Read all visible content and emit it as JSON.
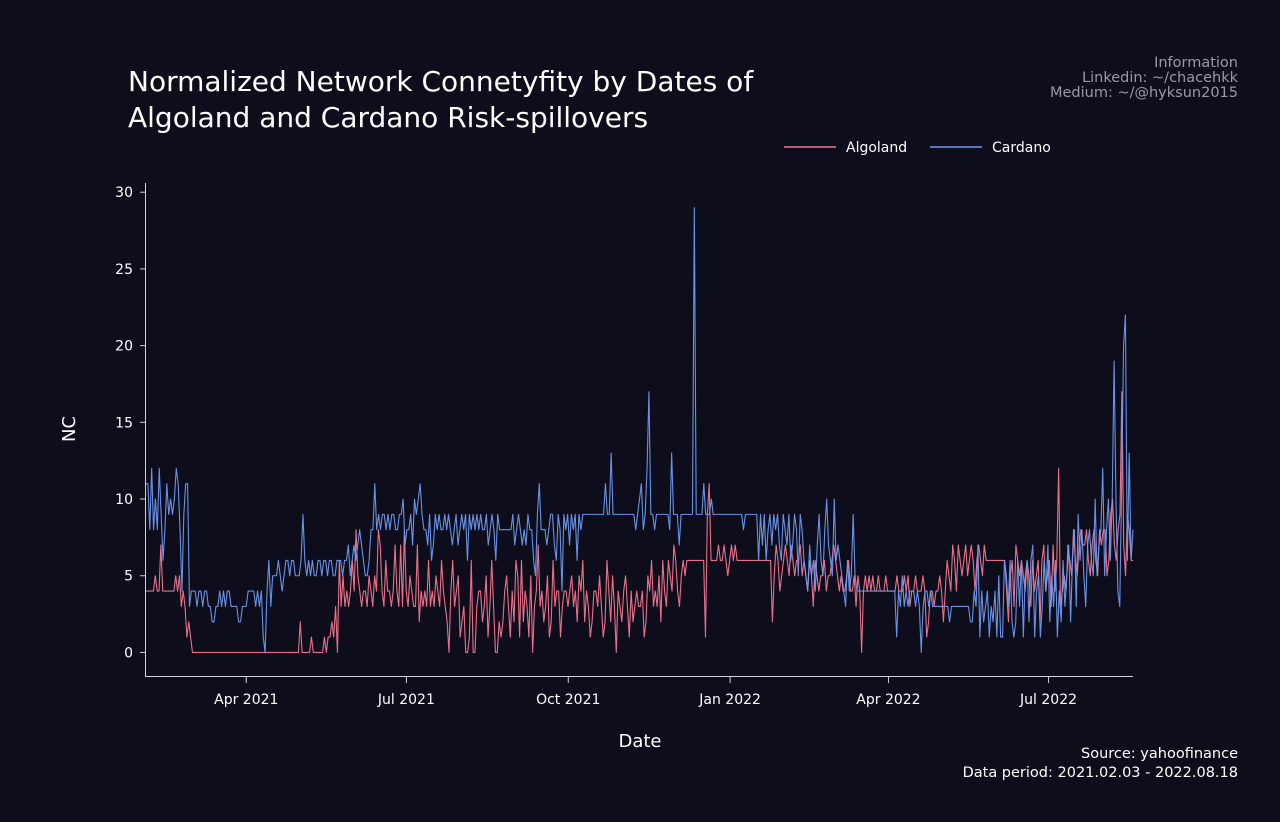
{
  "chart_data": {
    "type": "line",
    "title_lines": [
      "Normalized Network Connetyfity by Dates of",
      "Algoland and Cardano Risk-spillovers"
    ],
    "info": [
      "Information",
      "Linkedin: ~/chacehkk",
      "Medium: ~/@hyksun2015"
    ],
    "source": [
      "Source: yahoofinance",
      "Data period: 2021.02.03 - 2022.08.18"
    ],
    "xlabel": "Date",
    "ylabel": "NC",
    "x_start": "2021-02-03",
    "x_end": "2022-08-18",
    "ylim": [
      -1.6,
      30.6
    ],
    "yticks": [
      0,
      5,
      10,
      15,
      20,
      25,
      30
    ],
    "xticks": [
      {
        "date": "2021-04-01",
        "label": "Apr 2021"
      },
      {
        "date": "2021-07-01",
        "label": "Jul 2021"
      },
      {
        "date": "2021-10-01",
        "label": "Oct 2021"
      },
      {
        "date": "2022-01-01",
        "label": "Jan 2022"
      },
      {
        "date": "2022-04-01",
        "label": "Apr 2022"
      },
      {
        "date": "2022-07-01",
        "label": "Jul 2022"
      }
    ],
    "grid": false,
    "legend_position": "top-right",
    "series": [
      {
        "name": "Algoland",
        "color": "#f4778f",
        "values": [
          4,
          4,
          4,
          4,
          4,
          5,
          4,
          4,
          7,
          4,
          4,
          4,
          4,
          4,
          4,
          4,
          5,
          4,
          5,
          3,
          4,
          3,
          1,
          2,
          1,
          0,
          0,
          0,
          0,
          0,
          0,
          0,
          0,
          0,
          0,
          0,
          0,
          0,
          0,
          0,
          0,
          0,
          0,
          0,
          0,
          0,
          0,
          0,
          0,
          0,
          0,
          0,
          0,
          0,
          0,
          0,
          0,
          0,
          0,
          0,
          0,
          0,
          0,
          0,
          0,
          0,
          0,
          0,
          0,
          0,
          0,
          0,
          0,
          0,
          0,
          0,
          0,
          0,
          0,
          0,
          0,
          0,
          0,
          2,
          0,
          0,
          0,
          0,
          0,
          1,
          0,
          0,
          0,
          0,
          0,
          0,
          1,
          0,
          1,
          1,
          2,
          1,
          3,
          0,
          6,
          3,
          5,
          3,
          4,
          3,
          4,
          6,
          4,
          8,
          5,
          4,
          3,
          4,
          4,
          3,
          5,
          4,
          3,
          5,
          4,
          8,
          7,
          4,
          3,
          6,
          4,
          4,
          3,
          4,
          7,
          4,
          3,
          7,
          3,
          8,
          4,
          3,
          5,
          4,
          3,
          3,
          7,
          2,
          4,
          3,
          4,
          3,
          6,
          3,
          4,
          3,
          5,
          4,
          3,
          6,
          4,
          3,
          2,
          0,
          4,
          6,
          3,
          4,
          5,
          1,
          2,
          3,
          0,
          0,
          1,
          6,
          0,
          0,
          3,
          4,
          4,
          2,
          3,
          5,
          1,
          3,
          6,
          3,
          0,
          0,
          2,
          1,
          2,
          4,
          5,
          3,
          1,
          4,
          2,
          6,
          5,
          1,
          6,
          2,
          4,
          3,
          1,
          5,
          0,
          3,
          4,
          7,
          3,
          4,
          2,
          3,
          5,
          1,
          2,
          6,
          3,
          4,
          4,
          1,
          3,
          4,
          4,
          3,
          4,
          5,
          3,
          4,
          2,
          5,
          4,
          6,
          2,
          4,
          3,
          1,
          2,
          4,
          4,
          3,
          5,
          3,
          1,
          2,
          6,
          4,
          2,
          5,
          3,
          0,
          4,
          3,
          2,
          4,
          5,
          3,
          1,
          4,
          2,
          3,
          4,
          3,
          3,
          4,
          1,
          2,
          5,
          4,
          6,
          3,
          4,
          3,
          5,
          2,
          6,
          4,
          3,
          6,
          5,
          4,
          7,
          6,
          4,
          3,
          5,
          6,
          5,
          6,
          6,
          6,
          6,
          6,
          6,
          6,
          6,
          6,
          6,
          1,
          9,
          11,
          6,
          6,
          6,
          6,
          7,
          6,
          6,
          7,
          6,
          5,
          6,
          7,
          6,
          7,
          6,
          6,
          6,
          6,
          6,
          6,
          6,
          6,
          6,
          6,
          6,
          6,
          6,
          6,
          6,
          6,
          6,
          6,
          6,
          2,
          5,
          7,
          6,
          4,
          5,
          6,
          7,
          6,
          5,
          7,
          6,
          5,
          6,
          6,
          7,
          5,
          6,
          5,
          4,
          6,
          5,
          3,
          6,
          5,
          4,
          5,
          5,
          6,
          4,
          5,
          5,
          6,
          7,
          6,
          5,
          4,
          5,
          4,
          4,
          5,
          6,
          4,
          4,
          5,
          3,
          5,
          4,
          0,
          4,
          5,
          4,
          5,
          4,
          5,
          4,
          4,
          5,
          4,
          4,
          4,
          5,
          4,
          4,
          4,
          4,
          4,
          5,
          4,
          4,
          4,
          5,
          4,
          5,
          3,
          4,
          4,
          5,
          4,
          4,
          4,
          5,
          4,
          1,
          2,
          4,
          4,
          3,
          4,
          4,
          5,
          4,
          2,
          4,
          6,
          5,
          4,
          7,
          6,
          4,
          7,
          6,
          5,
          6,
          7,
          5,
          6,
          7,
          6,
          4,
          6,
          7,
          6,
          5,
          7,
          6,
          6,
          6,
          6,
          6,
          6,
          6,
          6,
          6,
          6,
          6,
          4,
          2,
          5,
          6,
          3,
          7,
          6,
          5,
          6,
          5,
          4,
          6,
          5,
          3,
          6,
          4,
          5,
          6,
          2,
          6,
          7,
          4,
          5,
          6,
          3,
          7,
          4,
          6,
          12,
          3,
          4,
          5,
          4,
          7,
          6,
          5,
          8,
          6,
          5,
          7,
          8,
          7,
          7,
          8,
          6,
          5,
          7,
          8,
          6,
          5,
          8,
          7,
          8,
          8,
          5,
          6,
          9,
          10,
          7,
          6,
          8,
          9,
          17,
          7,
          5,
          9,
          8,
          6,
          6
        ]
      },
      {
        "name": "Cardano",
        "color": "#6f9af0",
        "values": [
          11,
          11,
          8,
          12,
          8,
          10,
          8,
          12,
          9,
          6,
          8,
          11,
          9,
          10,
          9,
          10,
          12,
          11,
          8,
          4,
          9,
          11,
          11,
          3,
          4,
          4,
          4,
          3,
          4,
          4,
          3,
          4,
          4,
          3,
          3,
          2,
          2,
          3,
          3,
          4,
          3,
          4,
          3,
          4,
          4,
          3,
          3,
          3,
          3,
          2,
          2,
          3,
          3,
          3,
          4,
          4,
          4,
          4,
          3,
          4,
          3,
          4,
          1,
          0,
          4,
          6,
          3,
          5,
          5,
          5,
          6,
          5,
          4,
          5,
          6,
          6,
          5,
          6,
          6,
          5,
          5,
          5,
          6,
          9,
          6,
          5,
          6,
          5,
          6,
          5,
          5,
          6,
          6,
          5,
          6,
          6,
          5,
          6,
          6,
          5,
          5,
          6,
          6,
          6,
          5,
          6,
          6,
          7,
          5,
          6,
          7,
          6,
          7,
          8,
          7,
          6,
          5,
          5,
          6,
          8,
          8,
          11,
          8,
          9,
          8,
          9,
          9,
          8,
          9,
          8,
          9,
          9,
          8,
          8,
          9,
          9,
          10,
          7,
          8,
          8,
          9,
          7,
          10,
          9,
          10,
          11,
          9,
          8,
          8,
          7,
          9,
          6,
          7,
          9,
          8,
          9,
          8,
          8,
          9,
          8,
          9,
          8,
          7,
          8,
          9,
          7,
          8,
          9,
          8,
          9,
          6,
          9,
          8,
          9,
          8,
          9,
          8,
          9,
          8,
          8,
          9,
          7,
          8,
          9,
          8,
          6,
          9,
          8,
          8,
          8,
          8,
          8,
          8,
          8,
          9,
          7,
          8,
          9,
          8,
          7,
          8,
          7,
          9,
          8,
          8,
          6,
          5,
          9,
          11,
          8,
          8,
          8,
          7,
          8,
          9,
          9,
          7,
          6,
          9,
          8,
          4,
          9,
          8,
          9,
          7,
          9,
          8,
          9,
          6,
          9,
          8,
          9,
          9,
          9,
          9,
          9,
          9,
          9,
          9,
          9,
          9,
          9,
          9,
          11,
          9,
          9,
          13,
          9,
          9,
          9,
          9,
          9,
          9,
          9,
          9,
          9,
          9,
          9,
          9,
          8,
          9,
          10,
          11,
          8,
          9,
          12,
          17,
          9,
          9,
          8,
          9,
          9,
          9,
          9,
          9,
          9,
          9,
          8,
          13,
          9,
          9,
          9,
          7,
          9,
          9,
          9,
          9,
          9,
          9,
          9,
          29,
          9,
          9,
          9,
          9,
          11,
          9,
          9,
          9,
          10,
          9,
          9,
          9,
          9,
          9,
          9,
          9,
          9,
          9,
          9,
          9,
          9,
          9,
          9,
          9,
          9,
          8,
          9,
          9,
          9,
          9,
          9,
          9,
          9,
          6,
          9,
          7,
          9,
          6,
          8,
          9,
          7,
          9,
          8,
          9,
          7,
          6,
          9,
          8,
          7,
          9,
          6,
          7,
          9,
          8,
          5,
          9,
          8,
          6,
          5,
          4,
          7,
          5,
          6,
          4,
          7,
          9,
          6,
          5,
          8,
          10,
          7,
          6,
          5,
          10,
          6,
          7,
          6,
          5,
          4,
          3,
          6,
          4,
          5,
          9,
          5,
          4,
          4,
          4,
          4,
          4,
          4,
          4,
          4,
          4,
          4,
          4,
          4,
          4,
          4,
          4,
          4,
          4,
          4,
          4,
          4,
          4,
          1,
          4,
          3,
          5,
          3,
          4,
          3,
          4,
          4,
          4,
          3,
          4,
          3,
          0,
          3,
          4,
          4,
          3,
          4,
          3,
          3,
          3,
          3,
          3,
          3,
          3,
          3,
          3,
          2,
          3,
          3,
          3,
          3,
          3,
          3,
          3,
          3,
          3,
          3,
          2,
          2,
          4,
          3,
          7,
          1,
          4,
          2,
          3,
          4,
          1,
          3,
          2,
          4,
          1,
          5,
          1,
          1,
          6,
          5,
          3,
          6,
          2,
          1,
          2,
          6,
          3,
          6,
          1,
          5,
          6,
          2,
          6,
          7,
          1,
          4,
          5,
          1,
          3,
          6,
          4,
          7,
          2,
          5,
          3,
          6,
          1,
          4,
          2,
          6,
          3,
          5,
          7,
          2,
          6,
          8,
          3,
          9,
          6,
          8,
          5,
          3,
          7,
          8,
          6,
          5,
          10,
          5,
          7,
          8,
          12,
          5,
          8,
          10,
          6,
          10,
          19,
          10,
          4,
          3,
          11,
          20,
          22,
          6,
          13,
          6,
          8
        ]
      }
    ]
  }
}
